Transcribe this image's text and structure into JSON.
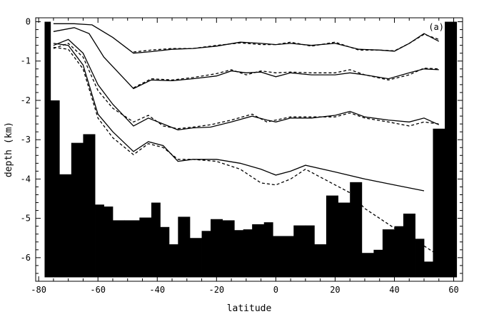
{
  "chart_data": {
    "type": "line",
    "panel_label": "(a)",
    "xlabel": "latitude",
    "ylabel": "depth (km)",
    "xlim": [
      -81,
      63
    ],
    "ylim": [
      -6.6,
      0.1
    ],
    "xticks": [
      -80,
      -60,
      -40,
      -20,
      0,
      20,
      40,
      60
    ],
    "yticks": [
      0,
      -1,
      -2,
      -3,
      -4,
      -5,
      -6
    ],
    "grid": false,
    "legend": "none",
    "colors": {
      "line": "#000000",
      "bathymetry": "#000000",
      "background": "#ffffff"
    },
    "bathymetry": {
      "base": -6.5,
      "bars": [
        {
          "x0": -78,
          "x1": -76,
          "depth": 0.0
        },
        {
          "x0": -76,
          "x1": -73,
          "depth": -2.0
        },
        {
          "x0": -73,
          "x1": -69,
          "depth": -3.88
        },
        {
          "x0": -69,
          "x1": -65,
          "depth": -3.08
        },
        {
          "x0": -65,
          "x1": -61,
          "depth": -2.86
        },
        {
          "x0": -61,
          "x1": -58,
          "depth": -4.65
        },
        {
          "x0": -58,
          "x1": -55,
          "depth": -4.7
        },
        {
          "x0": -55,
          "x1": -51,
          "depth": -5.05
        },
        {
          "x0": -51,
          "x1": -46,
          "depth": -5.05
        },
        {
          "x0": -46,
          "x1": -42,
          "depth": -4.98
        },
        {
          "x0": -42,
          "x1": -39,
          "depth": -4.6
        },
        {
          "x0": -39,
          "x1": -36,
          "depth": -5.22
        },
        {
          "x0": -36,
          "x1": -33,
          "depth": -5.66
        },
        {
          "x0": -33,
          "x1": -29,
          "depth": -4.96
        },
        {
          "x0": -29,
          "x1": -25,
          "depth": -5.5
        },
        {
          "x0": -25,
          "x1": -22,
          "depth": -5.32
        },
        {
          "x0": -22,
          "x1": -18,
          "depth": -5.02
        },
        {
          "x0": -18,
          "x1": -14,
          "depth": -5.05
        },
        {
          "x0": -14,
          "x1": -11,
          "depth": -5.3
        },
        {
          "x0": -11,
          "x1": -8,
          "depth": -5.28
        },
        {
          "x0": -8,
          "x1": -4,
          "depth": -5.15
        },
        {
          "x0": -4,
          "x1": -1,
          "depth": -5.1
        },
        {
          "x0": -1,
          "x1": 3,
          "depth": -5.45
        },
        {
          "x0": 3,
          "x1": 6,
          "depth": -5.45
        },
        {
          "x0": 6,
          "x1": 10,
          "depth": -5.18
        },
        {
          "x0": 10,
          "x1": 13,
          "depth": -5.18
        },
        {
          "x0": 13,
          "x1": 17,
          "depth": -5.66
        },
        {
          "x0": 17,
          "x1": 21,
          "depth": -4.42
        },
        {
          "x0": 21,
          "x1": 25,
          "depth": -4.6
        },
        {
          "x0": 25,
          "x1": 29,
          "depth": -4.08
        },
        {
          "x0": 29,
          "x1": 33,
          "depth": -5.88
        },
        {
          "x0": 33,
          "x1": 36,
          "depth": -5.8
        },
        {
          "x0": 36,
          "x1": 40,
          "depth": -5.28
        },
        {
          "x0": 40,
          "x1": 43,
          "depth": -5.2
        },
        {
          "x0": 43,
          "x1": 47,
          "depth": -4.88
        },
        {
          "x0": 47,
          "x1": 50,
          "depth": -5.52
        },
        {
          "x0": 50,
          "x1": 53,
          "depth": -6.1
        },
        {
          "x0": 53,
          "x1": 57,
          "depth": -2.72
        },
        {
          "x0": 57,
          "x1": 61,
          "depth": 0.0
        }
      ]
    },
    "series": [
      {
        "style": "solid",
        "x": [
          -75,
          -68,
          -62,
          -55,
          -48,
          -42,
          -35,
          -28,
          -20,
          -12,
          -5,
          0,
          5,
          12,
          20,
          28,
          35,
          40,
          45,
          50,
          55
        ],
        "y": [
          -0.05,
          -0.05,
          -0.08,
          -0.4,
          -0.8,
          -0.76,
          -0.7,
          -0.68,
          -0.62,
          -0.52,
          -0.55,
          -0.58,
          -0.55,
          -0.6,
          -0.55,
          -0.7,
          -0.72,
          -0.75,
          -0.55,
          -0.3,
          -0.5
        ]
      },
      {
        "style": "dashed",
        "x": [
          -48,
          -42,
          -35,
          -28,
          -20,
          -12,
          -5,
          0,
          5,
          12,
          20,
          28,
          35,
          40,
          45,
          50,
          55
        ],
        "y": [
          -0.77,
          -0.72,
          -0.68,
          -0.68,
          -0.6,
          -0.54,
          -0.58,
          -0.58,
          -0.52,
          -0.62,
          -0.52,
          -0.72,
          -0.72,
          -0.74,
          -0.55,
          -0.32,
          -0.45
        ]
      },
      {
        "style": "solid",
        "x": [
          -75,
          -68,
          -63,
          -58,
          -48,
          -42,
          -35,
          -28,
          -20,
          -15,
          -10,
          -5,
          0,
          5,
          12,
          20,
          25,
          30,
          38,
          45,
          50,
          55
        ],
        "y": [
          -0.25,
          -0.15,
          -0.3,
          -0.9,
          -1.7,
          -1.48,
          -1.5,
          -1.45,
          -1.38,
          -1.25,
          -1.3,
          -1.28,
          -1.4,
          -1.3,
          -1.35,
          -1.35,
          -1.3,
          -1.35,
          -1.45,
          -1.3,
          -1.2,
          -1.22
        ]
      },
      {
        "style": "dashed",
        "x": [
          -48,
          -42,
          -35,
          -28,
          -20,
          -15,
          -10,
          -5,
          0,
          5,
          12,
          20,
          25,
          30,
          38,
          45,
          50,
          55
        ],
        "y": [
          -1.68,
          -1.45,
          -1.48,
          -1.42,
          -1.32,
          -1.22,
          -1.35,
          -1.25,
          -1.3,
          -1.28,
          -1.3,
          -1.3,
          -1.22,
          -1.35,
          -1.48,
          -1.35,
          -1.18,
          -1.2
        ]
      },
      {
        "style": "solid",
        "x": [
          -75,
          -70,
          -65,
          -60,
          -55,
          -48,
          -43,
          -38,
          -33,
          -28,
          -22,
          -15,
          -8,
          -3,
          0,
          5,
          12,
          20,
          25,
          30,
          38,
          45,
          50,
          55
        ],
        "y": [
          -0.6,
          -0.45,
          -0.8,
          -1.6,
          -2.1,
          -2.65,
          -2.45,
          -2.6,
          -2.75,
          -2.7,
          -2.68,
          -2.55,
          -2.4,
          -2.5,
          -2.55,
          -2.45,
          -2.45,
          -2.38,
          -2.28,
          -2.42,
          -2.5,
          -2.55,
          -2.45,
          -2.62
        ]
      },
      {
        "style": "dashed",
        "x": [
          -75,
          -70,
          -65,
          -60,
          -55,
          -48,
          -43,
          -38,
          -33,
          -28,
          -22,
          -15,
          -8,
          -3,
          0,
          5,
          12,
          20,
          25,
          30,
          38,
          45,
          50,
          55
        ],
        "y": [
          -0.68,
          -0.55,
          -0.9,
          -1.75,
          -2.2,
          -2.55,
          -2.38,
          -2.65,
          -2.72,
          -2.68,
          -2.62,
          -2.5,
          -2.35,
          -2.55,
          -2.5,
          -2.42,
          -2.42,
          -2.42,
          -2.32,
          -2.45,
          -2.55,
          -2.65,
          -2.55,
          -2.6
        ]
      },
      {
        "style": "solid",
        "x": [
          -75,
          -70,
          -65,
          -60,
          -55,
          -48,
          -43,
          -38,
          -33,
          -28,
          -20,
          -12,
          -5,
          0,
          5,
          10,
          20,
          30,
          40,
          50
        ],
        "y": [
          -0.55,
          -0.6,
          -1.1,
          -2.35,
          -2.8,
          -3.3,
          -3.05,
          -3.15,
          -3.55,
          -3.5,
          -3.5,
          -3.6,
          -3.75,
          -3.9,
          -3.8,
          -3.65,
          -3.82,
          -4.0,
          -4.15,
          -4.3
        ]
      },
      {
        "style": "dashed",
        "x": [
          -75,
          -70,
          -65,
          -60,
          -55,
          -48,
          -43,
          -38,
          -33,
          -28,
          -20,
          -12,
          -5,
          0,
          5,
          10,
          20,
          25,
          30,
          35,
          40,
          45,
          50,
          53
        ],
        "y": [
          -0.65,
          -0.7,
          -1.2,
          -2.45,
          -2.95,
          -3.38,
          -3.1,
          -3.2,
          -3.5,
          -3.5,
          -3.55,
          -3.75,
          -4.1,
          -4.15,
          -4.0,
          -3.75,
          -4.15,
          -4.35,
          -4.75,
          -5.0,
          -5.25,
          -5.5,
          -5.7,
          -5.85
        ]
      }
    ]
  }
}
